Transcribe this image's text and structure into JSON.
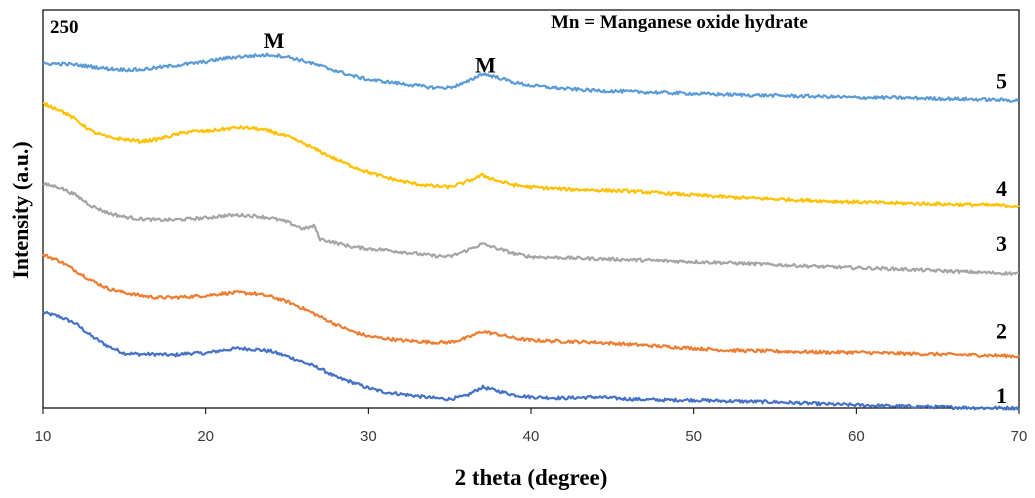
{
  "chart_data": {
    "type": "line",
    "title": "",
    "xlabel": "2 theta (degree)",
    "ylabel": "Intensity (a.u.)",
    "xlim": [
      10,
      70
    ],
    "x_ticks": [
      "10",
      "20",
      "30",
      "40",
      "50",
      "60",
      "70"
    ],
    "scale_label": "250",
    "legend_text": "Mn = Manganese oxide hydrate",
    "grid": false,
    "peak_labels": [
      {
        "text": "M",
        "x": 24.2,
        "y": 362
      },
      {
        "text": "M",
        "x": 37.2,
        "y": 337
      }
    ],
    "series": [
      {
        "name": "1",
        "color": "#4472C4",
        "label_y": 5,
        "points": [
          [
            10,
            96
          ],
          [
            11,
            92
          ],
          [
            12,
            85
          ],
          [
            13,
            72
          ],
          [
            14,
            62
          ],
          [
            15,
            55
          ],
          [
            16,
            54
          ],
          [
            17,
            54
          ],
          [
            18,
            53
          ],
          [
            19,
            55
          ],
          [
            20,
            55
          ],
          [
            21,
            58
          ],
          [
            22,
            60
          ],
          [
            23,
            59
          ],
          [
            24,
            57
          ],
          [
            25,
            52
          ],
          [
            26,
            46
          ],
          [
            27,
            40
          ],
          [
            28,
            31
          ],
          [
            29,
            26
          ],
          [
            30,
            20
          ],
          [
            31,
            16
          ],
          [
            32,
            14
          ],
          [
            33,
            12
          ],
          [
            34,
            10
          ],
          [
            35,
            9
          ],
          [
            36,
            12
          ],
          [
            37,
            21
          ],
          [
            38,
            17
          ],
          [
            39,
            13
          ],
          [
            40,
            11
          ],
          [
            42,
            10
          ],
          [
            44,
            11
          ],
          [
            46,
            9
          ],
          [
            48,
            8
          ],
          [
            50,
            8
          ],
          [
            52,
            7
          ],
          [
            55,
            6
          ],
          [
            58,
            4
          ],
          [
            60,
            3
          ],
          [
            62,
            2
          ],
          [
            65,
            1
          ],
          [
            68,
            0
          ],
          [
            70,
            0
          ]
        ]
      },
      {
        "name": "2",
        "color": "#ED7D31",
        "label_y": 70,
        "points": [
          [
            10,
            154
          ],
          [
            11,
            148
          ],
          [
            12,
            138
          ],
          [
            13,
            128
          ],
          [
            14,
            120
          ],
          [
            15,
            116
          ],
          [
            16,
            113
          ],
          [
            17,
            111
          ],
          [
            18,
            111
          ],
          [
            19,
            112
          ],
          [
            20,
            113
          ],
          [
            21,
            115
          ],
          [
            22,
            116
          ],
          [
            23,
            115
          ],
          [
            24,
            112
          ],
          [
            25,
            107
          ],
          [
            26,
            100
          ],
          [
            27,
            92
          ],
          [
            28,
            84
          ],
          [
            29,
            77
          ],
          [
            30,
            72
          ],
          [
            31,
            70
          ],
          [
            32,
            68
          ],
          [
            33,
            67
          ],
          [
            34,
            66
          ],
          [
            35,
            66
          ],
          [
            36,
            70
          ],
          [
            37,
            77
          ],
          [
            38,
            74
          ],
          [
            39,
            70
          ],
          [
            40,
            68
          ],
          [
            42,
            67
          ],
          [
            44,
            66
          ],
          [
            46,
            64
          ],
          [
            48,
            62
          ],
          [
            50,
            60
          ],
          [
            52,
            58
          ],
          [
            55,
            57
          ],
          [
            58,
            56
          ],
          [
            60,
            56
          ],
          [
            62,
            55
          ],
          [
            65,
            54
          ],
          [
            68,
            53
          ],
          [
            70,
            52
          ]
        ]
      },
      {
        "name": "3",
        "color": "#A5A5A5",
        "label_y": 158,
        "points": [
          [
            10,
            225
          ],
          [
            11,
            222
          ],
          [
            12,
            214
          ],
          [
            13,
            203
          ],
          [
            14,
            196
          ],
          [
            15,
            192
          ],
          [
            16,
            190
          ],
          [
            17,
            189
          ],
          [
            18,
            189
          ],
          [
            19,
            190
          ],
          [
            20,
            191
          ],
          [
            21,
            193
          ],
          [
            22,
            194
          ],
          [
            23,
            193
          ],
          [
            24,
            191
          ],
          [
            25,
            187
          ],
          [
            26,
            180
          ],
          [
            26.7,
            183
          ],
          [
            27,
            170
          ],
          [
            28,
            166
          ],
          [
            29,
            162
          ],
          [
            30,
            160
          ],
          [
            31,
            159
          ],
          [
            32,
            157
          ],
          [
            33,
            155
          ],
          [
            34,
            153
          ],
          [
            35,
            152
          ],
          [
            36,
            158
          ],
          [
            37,
            165
          ],
          [
            38,
            160
          ],
          [
            39,
            155
          ],
          [
            40,
            152
          ],
          [
            42,
            151
          ],
          [
            44,
            150
          ],
          [
            46,
            149
          ],
          [
            48,
            148
          ],
          [
            50,
            147
          ],
          [
            52,
            146
          ],
          [
            55,
            144
          ],
          [
            58,
            142
          ],
          [
            60,
            141
          ],
          [
            62,
            140
          ],
          [
            65,
            138
          ],
          [
            68,
            136
          ],
          [
            70,
            135
          ]
        ]
      },
      {
        "name": "4",
        "color": "#FFC000",
        "label_y": 213,
        "points": [
          [
            10,
            306
          ],
          [
            11,
            300
          ],
          [
            12,
            290
          ],
          [
            13,
            278
          ],
          [
            14,
            272
          ],
          [
            15,
            270
          ],
          [
            16,
            268
          ],
          [
            17,
            270
          ],
          [
            18,
            274
          ],
          [
            19,
            278
          ],
          [
            20,
            278
          ],
          [
            21,
            280
          ],
          [
            22,
            282
          ],
          [
            23,
            281
          ],
          [
            24,
            278
          ],
          [
            25,
            273
          ],
          [
            26,
            266
          ],
          [
            27,
            258
          ],
          [
            28,
            250
          ],
          [
            29,
            243
          ],
          [
            30,
            237
          ],
          [
            31,
            232
          ],
          [
            32,
            228
          ],
          [
            33,
            225
          ],
          [
            34,
            223
          ],
          [
            35,
            222
          ],
          [
            36,
            227
          ],
          [
            37,
            234
          ],
          [
            38,
            228
          ],
          [
            39,
            224
          ],
          [
            40,
            222
          ],
          [
            42,
            220
          ],
          [
            44,
            219
          ],
          [
            46,
            218
          ],
          [
            48,
            216
          ],
          [
            50,
            214
          ],
          [
            52,
            212
          ],
          [
            55,
            210
          ],
          [
            58,
            208
          ],
          [
            60,
            207
          ],
          [
            62,
            206
          ],
          [
            65,
            205
          ],
          [
            68,
            204
          ],
          [
            70,
            203
          ]
        ]
      },
      {
        "name": "5",
        "color": "#5B9BD5",
        "label_y": 321,
        "points": [
          [
            10,
            346
          ],
          [
            11,
            346
          ],
          [
            12,
            345
          ],
          [
            13,
            343
          ],
          [
            14,
            341
          ],
          [
            15,
            340
          ],
          [
            16,
            340
          ],
          [
            17,
            342
          ],
          [
            18,
            344
          ],
          [
            19,
            346
          ],
          [
            20,
            348
          ],
          [
            21,
            351
          ],
          [
            22,
            353
          ],
          [
            23,
            354
          ],
          [
            24,
            355
          ],
          [
            25,
            353
          ],
          [
            26,
            349
          ],
          [
            27,
            344
          ],
          [
            28,
            339
          ],
          [
            29,
            334
          ],
          [
            30,
            330
          ],
          [
            31,
            328
          ],
          [
            32,
            326
          ],
          [
            33,
            324
          ],
          [
            34,
            322
          ],
          [
            35,
            322
          ],
          [
            36,
            327
          ],
          [
            37,
            336
          ],
          [
            38,
            332
          ],
          [
            39,
            327
          ],
          [
            40,
            324
          ],
          [
            42,
            321
          ],
          [
            44,
            319
          ],
          [
            46,
            318
          ],
          [
            48,
            317
          ],
          [
            50,
            316
          ],
          [
            52,
            315
          ],
          [
            55,
            314
          ],
          [
            58,
            313
          ],
          [
            60,
            312
          ],
          [
            62,
            312
          ],
          [
            65,
            311
          ],
          [
            68,
            310
          ],
          [
            70,
            309
          ]
        ]
      }
    ]
  }
}
